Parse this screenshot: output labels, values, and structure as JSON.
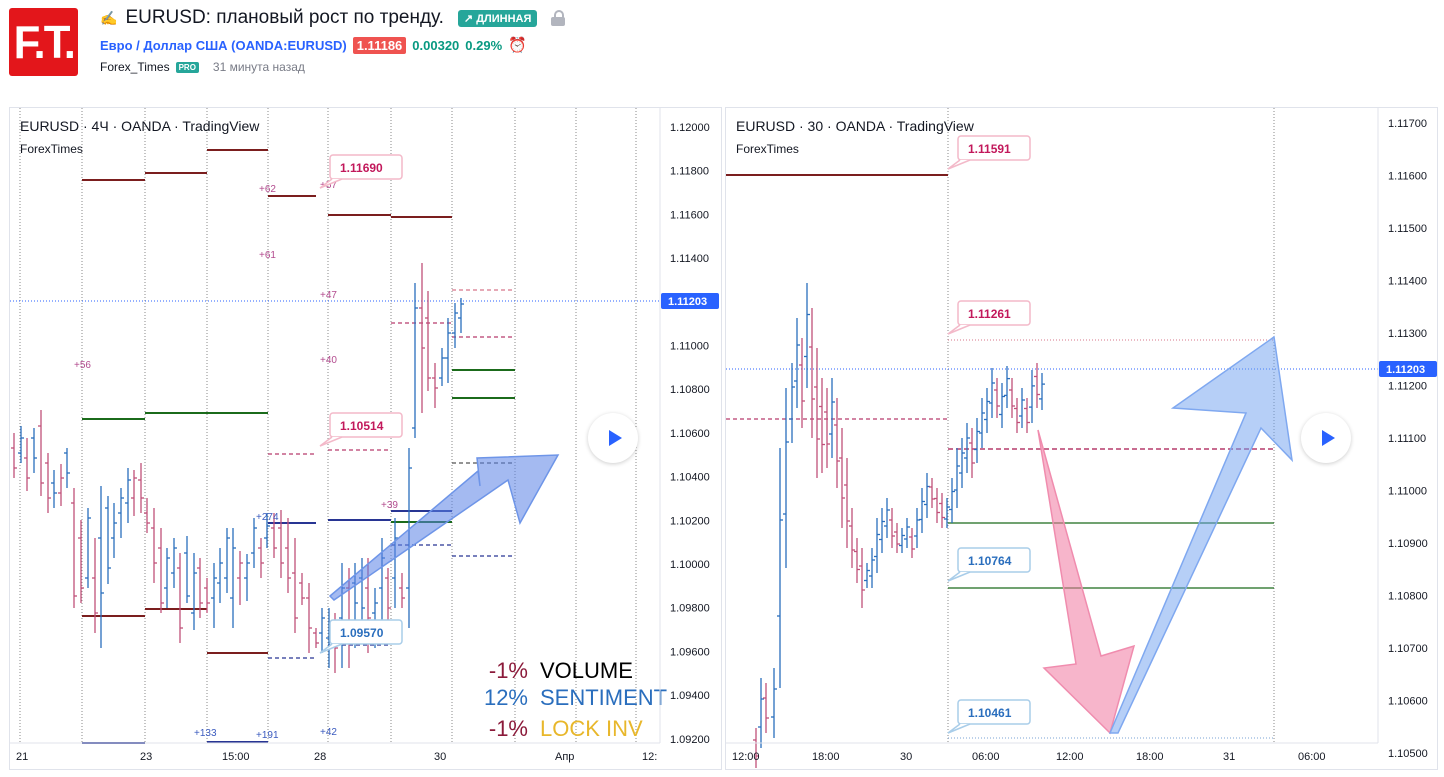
{
  "header": {
    "logo_text": "F.T.",
    "title": "EURUSD: плановый рост по тренду.",
    "badge": "↗ ДЛИННАЯ",
    "symbol_link": "Евро / Доллар США (OANDA:EURUSD)",
    "price": "1.11186",
    "change": "0.00320",
    "change_pct": "0.29%",
    "author": "Forex_Times",
    "author_badge": "PRO",
    "time_ago": "31 минута назад"
  },
  "left_chart": {
    "legend": "EURUSD · 4Ч · OANDA · TradingView",
    "sub": "ForexTimes",
    "y_ticks": [
      "1.12000",
      "1.11800",
      "1.11600",
      "1.11400",
      "1.11200",
      "1.11000",
      "1.10800",
      "1.10600",
      "1.10400",
      "1.10200",
      "1.10000",
      "1.09800",
      "1.09600",
      "1.09400",
      "1.09200"
    ],
    "last_price": "1.11203",
    "x_labels": [
      "21",
      "23",
      "15:00",
      "28",
      "30",
      "Апр",
      "12:"
    ],
    "callouts": [
      "1.11690",
      "1.10514",
      "1.09570"
    ],
    "small_labels": [
      "+62",
      "+57",
      "+61",
      "+47",
      "+56",
      "+40",
      "+39",
      "+274",
      "+133",
      "+191",
      "+42"
    ],
    "stats": [
      {
        "pct": "-1%",
        "label": "VOLUME",
        "pct_color": "#8b1a3a",
        "label_color": "#000000"
      },
      {
        "pct": "12%",
        "label": "SENTIMENT",
        "pct_color": "#2a6ebd",
        "label_color": "#2a6ebd"
      },
      {
        "pct": "-1%",
        "label": "LOCK INV",
        "pct_color": "#8b1a3a",
        "label_color": "#e8b72b"
      }
    ]
  },
  "right_chart": {
    "legend": "EURUSD · 30 · OANDA · TradingView",
    "sub": "ForexTimes",
    "y_ticks": [
      "1.11700",
      "1.11600",
      "1.11500",
      "1.11400",
      "1.11300",
      "1.11200",
      "1.11100",
      "1.11000",
      "1.10900",
      "1.10800",
      "1.10700",
      "1.10600",
      "1.10500"
    ],
    "last_price": "1.11203",
    "x_labels": [
      "12:00",
      "18:00",
      "30",
      "06:00",
      "12:00",
      "18:00",
      "31",
      "06:00"
    ],
    "callouts": [
      "1.11591",
      "1.11261",
      "1.10764",
      "1.10461"
    ]
  },
  "colors": {
    "up": "#2a6ebd",
    "down": "#c0507a",
    "level_red": "#7b1e1e",
    "level_green": "#1b6b1b",
    "arrow_blue": "#7fa8f0",
    "arrow_pink": "#f08cae",
    "price_tag": "#2962ff"
  }
}
